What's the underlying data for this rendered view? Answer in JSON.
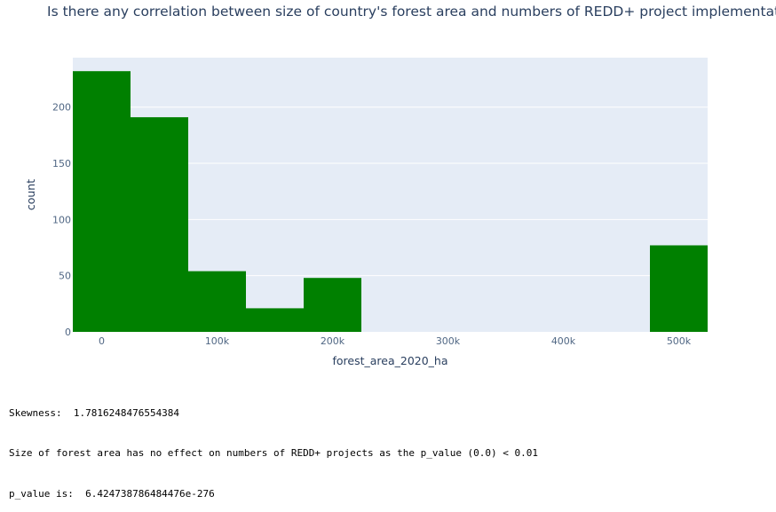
{
  "chart_data": {
    "type": "bar",
    "title": "Is there any correlation between size of country's forest area and numbers of REDD+ project implementation",
    "xlabel": "forest_area_2020_ha",
    "ylabel": "count",
    "bin_width": 50000,
    "bins": [
      {
        "start": -25000,
        "end": 25000,
        "value": 232
      },
      {
        "start": 25000,
        "end": 75000,
        "value": 191
      },
      {
        "start": 75000,
        "end": 125000,
        "value": 54
      },
      {
        "start": 125000,
        "end": 175000,
        "value": 21
      },
      {
        "start": 175000,
        "end": 225000,
        "value": 48
      },
      {
        "start": 475000,
        "end": 525000,
        "value": 77
      }
    ],
    "xlim": [
      -25000,
      525000
    ],
    "ylim": [
      0,
      244
    ],
    "x_ticks": [
      {
        "value": 0,
        "label": "0"
      },
      {
        "value": 100000,
        "label": "100k"
      },
      {
        "value": 200000,
        "label": "200k"
      },
      {
        "value": 300000,
        "label": "300k"
      },
      {
        "value": 400000,
        "label": "400k"
      },
      {
        "value": 500000,
        "label": "500k"
      }
    ],
    "y_ticks": [
      {
        "value": 0,
        "label": "0"
      },
      {
        "value": 50,
        "label": "50"
      },
      {
        "value": 100,
        "label": "100"
      },
      {
        "value": 150,
        "label": "150"
      },
      {
        "value": 200,
        "label": "200"
      }
    ],
    "grid": true,
    "bar_color": "#008000",
    "plot_bg": "#e5ecf6"
  },
  "output": {
    "skewness": "Skewness:  1.7816248476554384",
    "conclusion": "Size of forest area has no effect on numbers of REDD+ projects as the p_value (0.0) < 0.01",
    "p_value": "p_value is:  6.424738786484476e-276"
  }
}
